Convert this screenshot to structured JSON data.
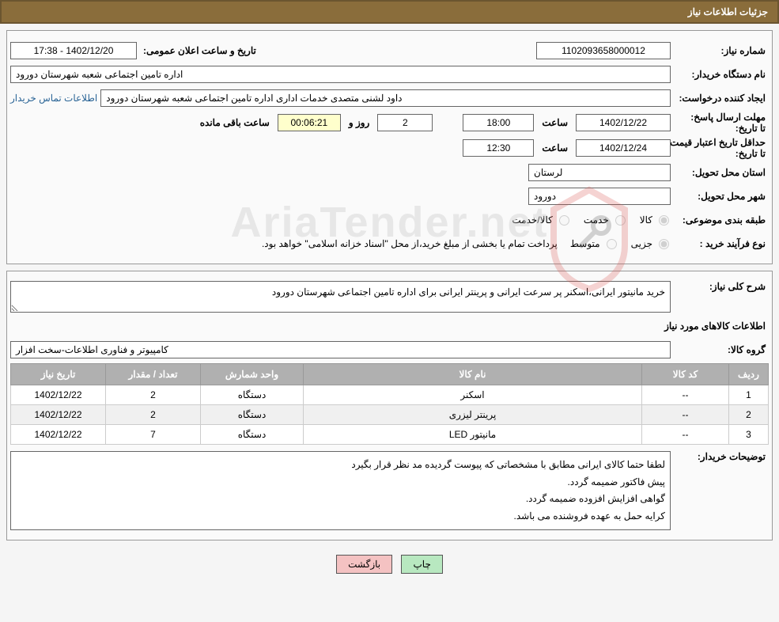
{
  "header": {
    "title": "جزئیات اطلاعات نیاز"
  },
  "fields": {
    "need_number_label": "شماره نیاز:",
    "need_number": "1102093658000012",
    "announce_label": "تاریخ و ساعت اعلان عمومی:",
    "announce_value": "1402/12/20 - 17:38",
    "buyer_org_label": "نام دستگاه خریدار:",
    "buyer_org": "اداره تامین اجتماعی شعبه شهرستان دورود",
    "requester_label": "ایجاد کننده درخواست:",
    "requester": "داود لشنی متصدی خدمات اداری اداره تامین اجتماعی شعبه شهرستان دورود",
    "contact_link": "اطلاعات تماس خریدار",
    "reply_deadline_label": "مهلت ارسال پاسخ:",
    "until_date_label": "تا تاریخ:",
    "deadline_date": "1402/12/22",
    "time_label": "ساعت",
    "deadline_time": "18:00",
    "days_remaining": "2",
    "days_and_label": "روز و",
    "countdown": "00:06:21",
    "remaining_label": "ساعت باقی مانده",
    "min_validity_label": "حداقل تاریخ اعتبار قیمت:",
    "validity_date": "1402/12/24",
    "validity_time": "12:30",
    "delivery_province_label": "استان محل تحویل:",
    "delivery_province": "لرستان",
    "delivery_city_label": "شهر محل تحویل:",
    "delivery_city": "دورود",
    "subject_class_label": "طبقه بندی موضوعی:",
    "class_goods": "کالا",
    "class_service": "خدمت",
    "class_goods_service": "کالا/خدمت",
    "buy_process_label": "نوع فرآیند خرید :",
    "process_partial": "جزیی",
    "process_medium": "متوسط",
    "process_note": "پرداخت تمام یا بخشی از مبلغ خرید،از محل \"اسناد خزانه اسلامی\" خواهد بود."
  },
  "desc": {
    "overall_label": "شرح کلی نیاز:",
    "overall_text": "خرید مانیتور ایرانی،اسکنر پر سرعت ایرانی و پرینتر ایرانی برای اداره تامین اجتماعی شهرستان دورود",
    "goods_info_header": "اطلاعات کالاهای مورد نیاز",
    "group_label": "گروه کالا:",
    "group_value": "کامپیوتر و فناوری اطلاعات-سخت افزار"
  },
  "table": {
    "cols": [
      "ردیف",
      "کد کالا",
      "نام کالا",
      "واحد شمارش",
      "تعداد / مقدار",
      "تاریخ نیاز"
    ],
    "rows": [
      [
        "1",
        "--",
        "اسکنر",
        "دستگاه",
        "2",
        "1402/12/22"
      ],
      [
        "2",
        "--",
        "پرینتر لیزری",
        "دستگاه",
        "2",
        "1402/12/22"
      ],
      [
        "3",
        "--",
        "مانیتور LED",
        "دستگاه",
        "7",
        "1402/12/22"
      ]
    ]
  },
  "notes": {
    "label": "توضیحات خریدار:",
    "line1": "لطفا حتما کالای ایرانی مطابق با مشخصاتی که پیوست گردیده مد نظر قرار بگیرد",
    "line2": "پیش فاکتور ضمیمه گردد.",
    "line3": "گواهی افزایش افزوده ضمیمه گردد.",
    "line4": "کرایه حمل به عهده فروشنده می باشد."
  },
  "buttons": {
    "print": "چاپ",
    "back": "بازگشت"
  },
  "colors": {
    "header_bg": "#8a6d3b",
    "th_bg": "#b0b0b0",
    "btn_print_bg": "#b8e8c0",
    "btn_back_bg": "#f4c2c2",
    "link_color": "#2a6496"
  },
  "watermark": {
    "text": "AriaTender.net"
  }
}
